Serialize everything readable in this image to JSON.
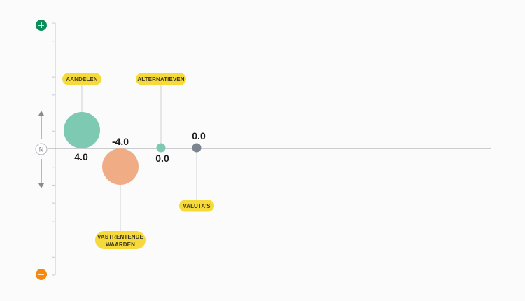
{
  "chart_data": {
    "type": "scatter",
    "center_label": "N",
    "colors": {
      "positive": "#0b8d5c",
      "negative": "#f5890e",
      "tag": "#f6d93a",
      "axis": "#c7c9ce",
      "leader": "#cfd1d6"
    },
    "points": [
      {
        "label": "AANDELEN",
        "value": "4.0",
        "color": "#7ec9b1"
      },
      {
        "label": "VASTRENTENDE WAARDEN",
        "value": "-4.0",
        "color": "#f0ad85"
      },
      {
        "label": "ALTERNATIEVEN",
        "value": "0.0",
        "color": "#7ec9b1"
      },
      {
        "label": "VALUTA'S",
        "value": "0.0",
        "color": "#7c8490"
      }
    ]
  }
}
